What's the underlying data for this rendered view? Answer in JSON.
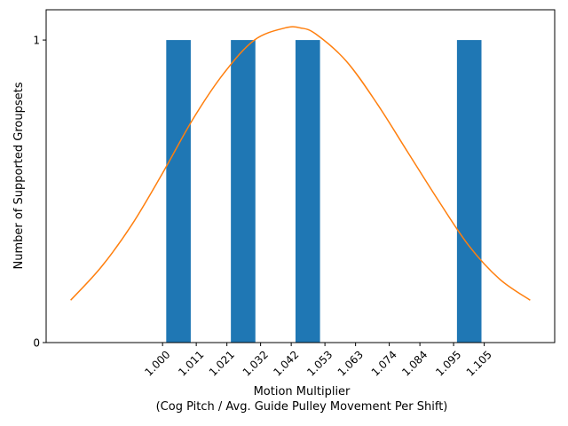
{
  "chart_data": {
    "type": "bar",
    "xlabel_line1": "Motion Multiplier",
    "xlabel_line2": "(Cog Pitch / Avg. Guide Pulley Movement Per Shift)",
    "ylabel": "Number of Supported Groupsets",
    "x_ticks": [
      "1.000",
      "1.011",
      "1.021",
      "1.032",
      "1.042",
      "1.053",
      "1.063",
      "1.074",
      "1.084",
      "1.095",
      "1.105"
    ],
    "y_ticks": [
      "0",
      "1"
    ],
    "xlim": [
      0.962,
      1.128
    ],
    "ylim": [
      0,
      1.1
    ],
    "bars": [
      {
        "x0": 1.0012,
        "x1": 1.0092,
        "value": 1
      },
      {
        "x0": 1.0223,
        "x1": 1.0303,
        "value": 1
      },
      {
        "x0": 1.0434,
        "x1": 1.0514,
        "value": 1
      },
      {
        "x0": 1.0961,
        "x1": 1.1041,
        "value": 1
      }
    ],
    "curve": {
      "x": [
        0.97,
        0.98,
        0.99,
        1.0,
        1.01,
        1.02,
        1.03,
        1.04,
        1.045,
        1.05,
        1.06,
        1.07,
        1.08,
        1.09,
        1.1,
        1.11,
        1.12
      ],
      "y": [
        0.14,
        0.25,
        0.39,
        0.56,
        0.74,
        0.89,
        1.0,
        1.04,
        1.04,
        1.02,
        0.93,
        0.79,
        0.63,
        0.47,
        0.32,
        0.21,
        0.14
      ]
    },
    "bar_color": "#1f77b4",
    "curve_color": "#ff7f0e",
    "grid": false
  }
}
